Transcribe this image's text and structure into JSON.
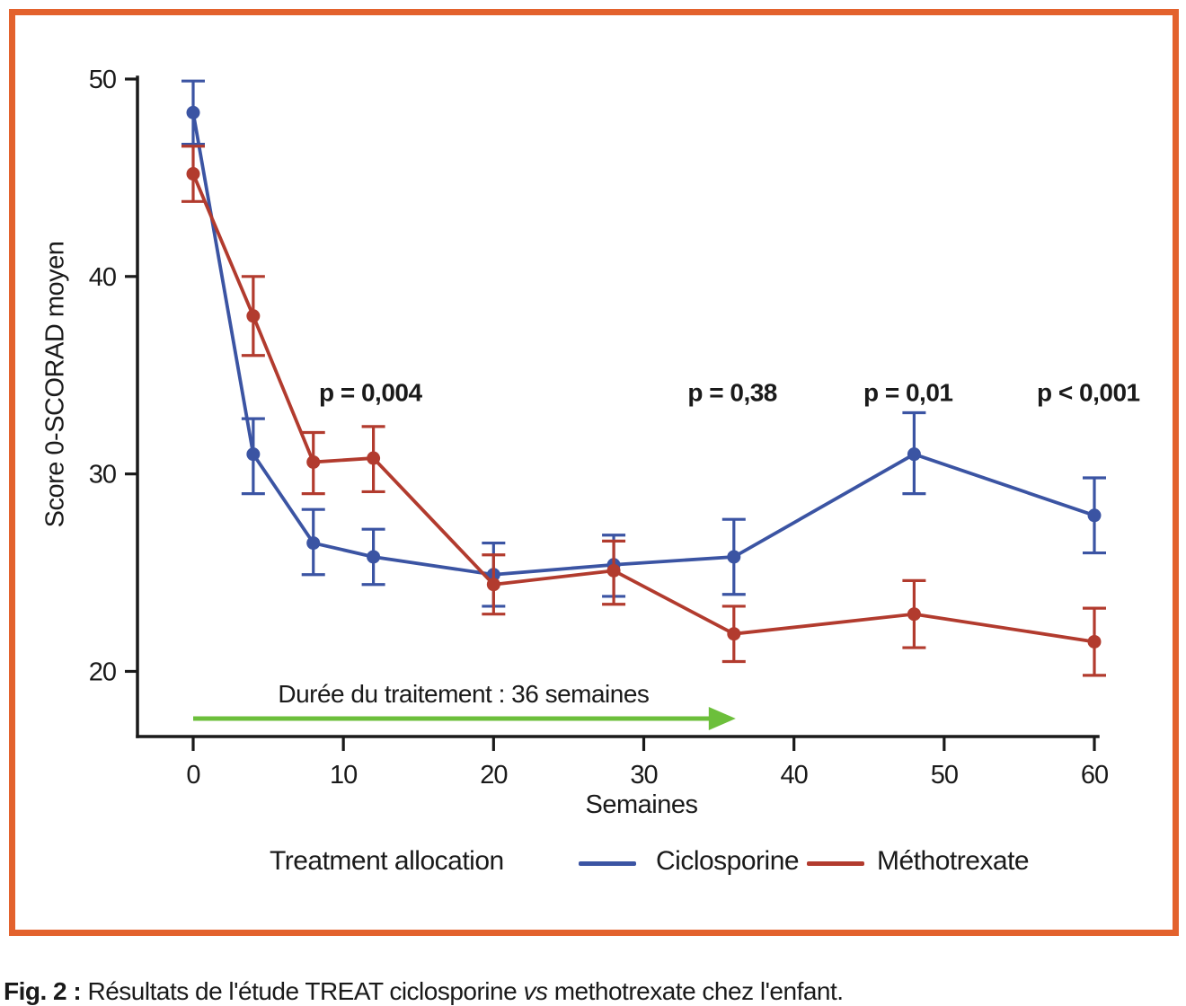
{
  "colors": {
    "border": "#E3622D",
    "axis": "#1a1a1a",
    "ciclosporine": "#3B54A3",
    "methotrexate": "#B23B2E",
    "arrow_green": "#6CBF3B"
  },
  "legend": {
    "title": "Treatment allocation",
    "items": [
      {
        "label": "Ciclosporine",
        "color": "#3B54A3"
      },
      {
        "label": "Méthotrexate",
        "color": "#B23B2E"
      }
    ]
  },
  "caption": {
    "prefix": "Fig. 2 :",
    "before_vs": " Résultats de l'étude TREAT ciclosporine ",
    "vs": "vs",
    "after_vs": " methotrexate chez l'enfant."
  },
  "chart_data": {
    "type": "line",
    "title": "",
    "xlabel": "Semaines",
    "ylabel": "Score 0-SCORAD moyen",
    "xlim": [
      0,
      60
    ],
    "ylim": [
      16.7,
      50
    ],
    "x_ticks": [
      0,
      10,
      20,
      30,
      40,
      50,
      60
    ],
    "y_ticks": [
      20,
      30,
      40,
      50
    ],
    "grid": false,
    "legend_position": "bottom",
    "x": [
      0,
      4,
      8,
      12,
      20,
      28,
      36,
      48,
      60
    ],
    "series": [
      {
        "name": "Ciclosporine",
        "color": "#3B54A3",
        "values": [
          48.3,
          31.0,
          26.5,
          25.8,
          24.9,
          25.4,
          25.8,
          31.0,
          27.9
        ],
        "err_low": [
          46.7,
          29.0,
          24.9,
          24.4,
          23.3,
          23.8,
          23.9,
          29.0,
          26.0
        ],
        "err_high": [
          49.9,
          32.8,
          28.2,
          27.2,
          26.5,
          26.9,
          27.7,
          33.1,
          29.8
        ]
      },
      {
        "name": "Méthotrexate",
        "color": "#B23B2E",
        "values": [
          45.2,
          38.0,
          30.6,
          30.8,
          24.4,
          25.1,
          21.9,
          22.9,
          21.5
        ],
        "err_low": [
          43.8,
          36.0,
          29.0,
          29.1,
          22.9,
          23.4,
          20.5,
          21.2,
          19.8
        ],
        "err_high": [
          46.6,
          40.0,
          32.1,
          32.4,
          25.9,
          26.6,
          23.3,
          24.6,
          23.2
        ]
      }
    ],
    "annotations": [
      {
        "week": 11.8,
        "label": "p = 0,004"
      },
      {
        "week": 35.9,
        "label": "p = 0,38"
      },
      {
        "week": 47.6,
        "label": "p = 0,01"
      },
      {
        "week": 59.6,
        "label": "p < 0,001"
      }
    ],
    "annotation_value_y": 33.7,
    "treatment_arrow": {
      "label": "Durée du traitement : 36 semaines",
      "from_week": 0,
      "to_week": 36,
      "color": "#6CBF3B"
    }
  }
}
